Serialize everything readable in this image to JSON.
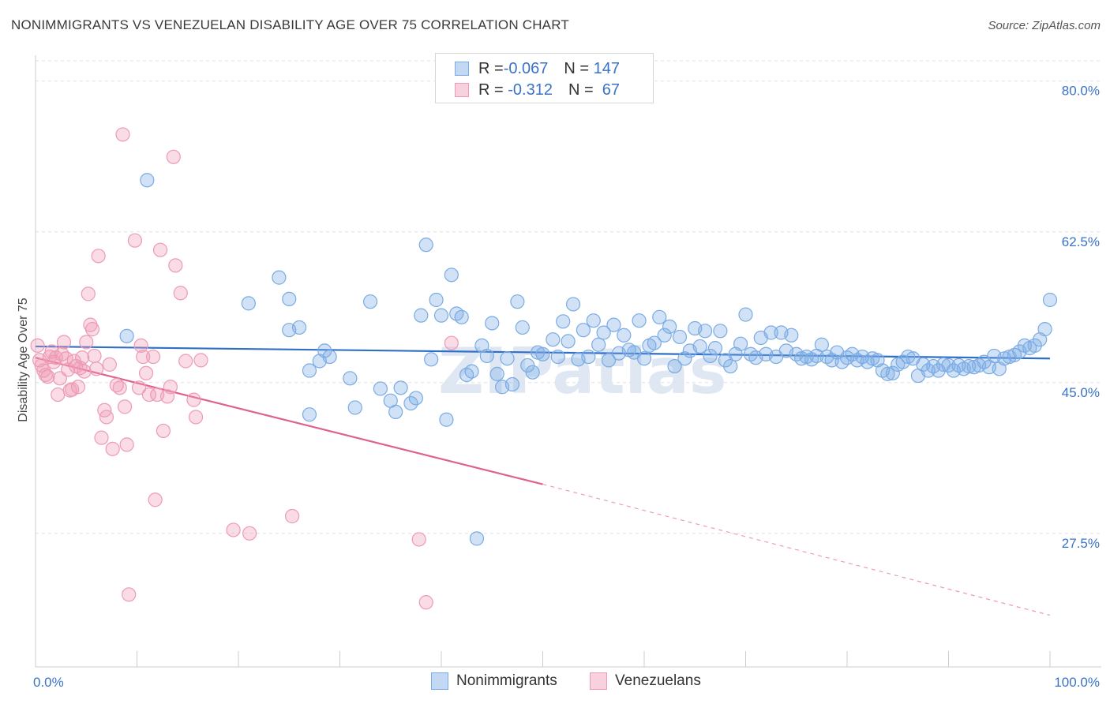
{
  "title": "NONIMMIGRANTS VS VENEZUELAN DISABILITY AGE OVER 75 CORRELATION CHART",
  "source": "Source: ZipAtlas.com",
  "watermark": "ZIPatlas",
  "legend": {
    "rows": [
      {
        "r_label": "R = ",
        "r_value": "-0.067",
        "n_label": "N = ",
        "n_value": "147"
      },
      {
        "r_label": "R = ",
        "r_value": " -0.312",
        "n_label": "N = ",
        "n_value": " 67"
      }
    ]
  },
  "colors": {
    "blue": "#7aabe4",
    "blue_fill": "rgba(122,171,228,0.35)",
    "blue_line": "#2f6fc9",
    "pink": "#ee9ab5",
    "pink_fill": "rgba(238,154,181,0.35)",
    "pink_line": "#e06090",
    "axis_text": "#3a72c8",
    "grid": "#e0e0e0"
  },
  "chart_data": {
    "type": "scatter",
    "title": "NONIMMIGRANTS VS VENEZUELAN DISABILITY AGE OVER 75 CORRELATION CHART",
    "xlabel": "",
    "ylabel": "Disability Age Over 75",
    "xlim": [
      0,
      100
    ],
    "ylim": [
      12,
      83
    ],
    "x_ticks": [
      0,
      100
    ],
    "x_tick_labels": [
      "0.0%",
      "100.0%"
    ],
    "y_ticks": [
      27.5,
      45.0,
      62.5,
      80.0
    ],
    "y_tick_labels": [
      "27.5%",
      "45.0%",
      "62.5%",
      "80.0%"
    ],
    "grid": true,
    "legend_position": "bottom",
    "series": [
      {
        "name": "Nonimmigrants",
        "color": "#7aabe4",
        "trend": {
          "x": [
            0,
            100
          ],
          "y": [
            49.2,
            47.8
          ],
          "style": "solid"
        },
        "points": [
          [
            9,
            50.4
          ],
          [
            11,
            68.5
          ],
          [
            21,
            54.2
          ],
          [
            24,
            57.2
          ],
          [
            25,
            51.1
          ],
          [
            25,
            54.7
          ],
          [
            26,
            51.4
          ],
          [
            27,
            41.3
          ],
          [
            27,
            46.4
          ],
          [
            28,
            47.5
          ],
          [
            28.5,
            48.7
          ],
          [
            29,
            48.0
          ],
          [
            31,
            45.5
          ],
          [
            31.5,
            42.1
          ],
          [
            33,
            54.4
          ],
          [
            34,
            44.3
          ],
          [
            35,
            42.9
          ],
          [
            35.5,
            41.6
          ],
          [
            36,
            44.4
          ],
          [
            37,
            42.6
          ],
          [
            37.5,
            43.2
          ],
          [
            38,
            52.8
          ],
          [
            38.5,
            61.0
          ],
          [
            39,
            47.7
          ],
          [
            39.5,
            54.6
          ],
          [
            40,
            52.8
          ],
          [
            40.5,
            40.7
          ],
          [
            41,
            57.5
          ],
          [
            41.5,
            53.0
          ],
          [
            42,
            52.6
          ],
          [
            42.5,
            45.9
          ],
          [
            43,
            46.3
          ],
          [
            43.5,
            26.9
          ],
          [
            44,
            49.3
          ],
          [
            44.5,
            48.1
          ],
          [
            45,
            51.9
          ],
          [
            45.5,
            46.0
          ],
          [
            46,
            44.5
          ],
          [
            46.5,
            47.8
          ],
          [
            47,
            44.8
          ],
          [
            47.5,
            54.4
          ],
          [
            48,
            51.4
          ],
          [
            48.5,
            47.0
          ],
          [
            49,
            46.2
          ],
          [
            49.5,
            48.5
          ],
          [
            50,
            48.3
          ],
          [
            51,
            50.0
          ],
          [
            51.5,
            48.0
          ],
          [
            52,
            52.1
          ],
          [
            52.5,
            49.8
          ],
          [
            53,
            54.1
          ],
          [
            53.5,
            47.7
          ],
          [
            54,
            51.1
          ],
          [
            54.5,
            48.0
          ],
          [
            55,
            52.2
          ],
          [
            55.5,
            49.4
          ],
          [
            56,
            50.8
          ],
          [
            56.5,
            47.6
          ],
          [
            57,
            51.7
          ],
          [
            57.5,
            48.4
          ],
          [
            58,
            50.5
          ],
          [
            58.5,
            48.8
          ],
          [
            59,
            48.5
          ],
          [
            59.5,
            52.2
          ],
          [
            60,
            47.8
          ],
          [
            60.5,
            49.3
          ],
          [
            61,
            49.6
          ],
          [
            61.5,
            52.6
          ],
          [
            62,
            50.5
          ],
          [
            62.5,
            51.5
          ],
          [
            63,
            46.9
          ],
          [
            63.5,
            50.3
          ],
          [
            64,
            47.8
          ],
          [
            64.5,
            48.7
          ],
          [
            65,
            51.3
          ],
          [
            65.5,
            49.2
          ],
          [
            66,
            51.0
          ],
          [
            66.5,
            48.1
          ],
          [
            67,
            49.0
          ],
          [
            67.5,
            51.0
          ],
          [
            68,
            47.6
          ],
          [
            68.5,
            46.9
          ],
          [
            69,
            48.3
          ],
          [
            69.5,
            49.5
          ],
          [
            70,
            52.9
          ],
          [
            70.5,
            48.3
          ],
          [
            71,
            47.9
          ],
          [
            71.5,
            50.2
          ],
          [
            72,
            48.3
          ],
          [
            72.5,
            50.8
          ],
          [
            73,
            48.0
          ],
          [
            73.5,
            50.8
          ],
          [
            74,
            48.7
          ],
          [
            74.5,
            50.5
          ],
          [
            75,
            48.3
          ],
          [
            75.5,
            47.8
          ],
          [
            76,
            48.0
          ],
          [
            76.5,
            47.7
          ],
          [
            77,
            48.1
          ],
          [
            77.5,
            49.4
          ],
          [
            78,
            48.0
          ],
          [
            78.5,
            47.6
          ],
          [
            79,
            48.5
          ],
          [
            79.5,
            47.4
          ],
          [
            80,
            47.9
          ],
          [
            80.5,
            48.3
          ],
          [
            81,
            47.6
          ],
          [
            81.5,
            48.0
          ],
          [
            82,
            47.4
          ],
          [
            82.5,
            47.8
          ],
          [
            83,
            47.6
          ],
          [
            83.5,
            46.4
          ],
          [
            84,
            46.0
          ],
          [
            84.5,
            46.1
          ],
          [
            85,
            47.1
          ],
          [
            85.5,
            47.4
          ],
          [
            86,
            48.0
          ],
          [
            86.5,
            47.8
          ],
          [
            87,
            45.8
          ],
          [
            87.5,
            47.1
          ],
          [
            88,
            46.4
          ],
          [
            88.5,
            46.9
          ],
          [
            89,
            46.4
          ],
          [
            89.5,
            47.1
          ],
          [
            90,
            47.0
          ],
          [
            90.5,
            46.4
          ],
          [
            91,
            47.0
          ],
          [
            91.5,
            46.6
          ],
          [
            92,
            46.9
          ],
          [
            92.5,
            46.8
          ],
          [
            93,
            47.0
          ],
          [
            93.5,
            47.4
          ],
          [
            94,
            46.8
          ],
          [
            94.5,
            48.1
          ],
          [
            95,
            46.6
          ],
          [
            95.5,
            47.8
          ],
          [
            96,
            48.0
          ],
          [
            96.5,
            48.2
          ],
          [
            97,
            48.6
          ],
          [
            97.5,
            49.3
          ],
          [
            98,
            49.0
          ],
          [
            98.5,
            49.3
          ],
          [
            99,
            50.0
          ],
          [
            99.5,
            51.2
          ],
          [
            100,
            54.6
          ]
        ]
      },
      {
        "name": "Venezuelans",
        "color": "#ee9ab5",
        "trend": {
          "x": [
            0,
            50,
            100
          ],
          "y": [
            47.9,
            33.2,
            18.0
          ],
          "style": "solid-then-dashed",
          "solid_until": 50
        },
        "points": [
          [
            0.2,
            49.3
          ],
          [
            0.4,
            47.6
          ],
          [
            0.6,
            47.0
          ],
          [
            0.8,
            46.4
          ],
          [
            1.0,
            45.9
          ],
          [
            1.2,
            45.7
          ],
          [
            1.4,
            48.0
          ],
          [
            1.6,
            48.6
          ],
          [
            1.8,
            47.4
          ],
          [
            2.0,
            47.9
          ],
          [
            2.2,
            43.6
          ],
          [
            2.4,
            45.5
          ],
          [
            2.6,
            48.3
          ],
          [
            2.8,
            49.7
          ],
          [
            3.0,
            47.8
          ],
          [
            3.2,
            46.5
          ],
          [
            3.4,
            44.1
          ],
          [
            3.6,
            44.2
          ],
          [
            3.8,
            47.5
          ],
          [
            4.0,
            46.9
          ],
          [
            4.2,
            44.5
          ],
          [
            4.4,
            46.7
          ],
          [
            4.6,
            47.9
          ],
          [
            4.8,
            46.3
          ],
          [
            5.0,
            49.7
          ],
          [
            5.2,
            55.3
          ],
          [
            5.4,
            51.7
          ],
          [
            5.6,
            51.2
          ],
          [
            5.8,
            48.1
          ],
          [
            6.0,
            46.6
          ],
          [
            6.2,
            59.7
          ],
          [
            6.5,
            38.6
          ],
          [
            6.8,
            41.8
          ],
          [
            7.0,
            41.0
          ],
          [
            7.3,
            47.1
          ],
          [
            7.6,
            37.3
          ],
          [
            8.0,
            44.7
          ],
          [
            8.3,
            44.4
          ],
          [
            8.6,
            73.8
          ],
          [
            8.8,
            42.2
          ],
          [
            9.0,
            37.8
          ],
          [
            9.2,
            20.4
          ],
          [
            9.8,
            61.5
          ],
          [
            10.2,
            44.4
          ],
          [
            10.4,
            49.3
          ],
          [
            10.6,
            48.0
          ],
          [
            10.9,
            46.1
          ],
          [
            11.2,
            43.6
          ],
          [
            11.6,
            48.0
          ],
          [
            11.8,
            31.4
          ],
          [
            12.0,
            43.6
          ],
          [
            12.3,
            60.4
          ],
          [
            12.6,
            39.4
          ],
          [
            13.0,
            43.4
          ],
          [
            13.3,
            44.5
          ],
          [
            13.6,
            71.2
          ],
          [
            13.8,
            58.6
          ],
          [
            14.3,
            55.4
          ],
          [
            14.8,
            47.5
          ],
          [
            15.6,
            43.0
          ],
          [
            15.8,
            41.0
          ],
          [
            16.3,
            47.6
          ],
          [
            19.5,
            27.9
          ],
          [
            21.1,
            27.5
          ],
          [
            25.3,
            29.5
          ],
          [
            37.8,
            26.8
          ],
          [
            38.5,
            19.5
          ],
          [
            41.0,
            49.6
          ]
        ]
      }
    ]
  },
  "bottom_legend": [
    {
      "label": "Nonimmigrants"
    },
    {
      "label": "Venezuelans"
    }
  ]
}
